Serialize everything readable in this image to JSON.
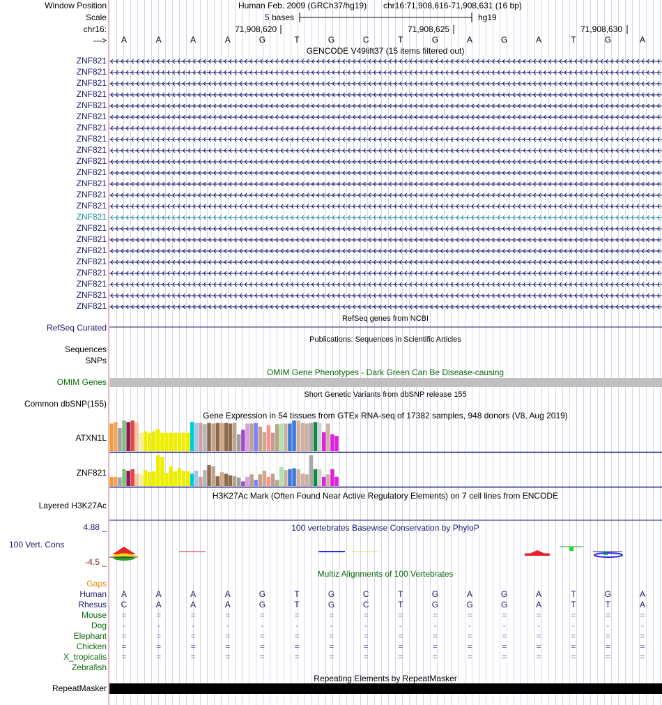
{
  "header": {
    "window_position_label": "Window Position",
    "scale_label": "Scale",
    "chrom_label": "chr16:",
    "strand_label": "--->",
    "assembly_text": "Human Feb. 2009 (GRCh37/hg19)",
    "region_text": "chr16:71,908,616-71,908,631 (16 bp)",
    "scale_text": "5 bases",
    "db_text": "hg19",
    "coords": [
      "71,908,620",
      "71,908,625",
      "71,908,630"
    ]
  },
  "sequence": [
    "A",
    "A",
    "A",
    "A",
    "G",
    "T",
    "G",
    "C",
    "T",
    "G",
    "A",
    "G",
    "A",
    "T",
    "G",
    "A"
  ],
  "gencode": {
    "title": "GENCODE V49lift37 (15 items filtered out)",
    "labels": [
      "ZNF821",
      "ZNF821",
      "ZNF821",
      "ZNF821",
      "ZNF821",
      "ZNF821",
      "ZNF821",
      "ZNF821",
      "ZNF821",
      "ZNF821",
      "ZNF821",
      "ZNF821",
      "ZNF821",
      "ZNF821",
      "ZNF821",
      "ZNF821",
      "ZNF821",
      "ZNF821",
      "ZNF821",
      "ZNF821",
      "ZNF821",
      "ZNF821",
      "ZNF821"
    ],
    "highlight_index": 14,
    "color": "#1a1a6e",
    "highlight_color": "#1e8fa6"
  },
  "refseq": {
    "label": "RefSeq Curated",
    "title": "RefSeq genes from NCBI"
  },
  "publications": {
    "title": "Publications: Sequences in Scientific Articles",
    "labels": [
      "Sequences",
      "SNPs"
    ]
  },
  "omim": {
    "title": "OMIM Gene Phenotypes - Dark Green Can Be Disease-causing",
    "label": "OMIM Genes",
    "bar_color": "#c0c0c0"
  },
  "dbsnp": {
    "title": "Short Genetic Variants from dbSNP release 155",
    "label": "Common dbSNP(155)"
  },
  "gtex": {
    "title": "Gene Expression in 54 tissues from GTEx RNA-seq of 17382 samples, 948 donors (V8, Aug 2019)",
    "genes": [
      {
        "name": "ATXN1L",
        "values": [
          0.9,
          0.95,
          0.75,
          1.0,
          0.95,
          1.0,
          0.93,
          0.6,
          0.65,
          0.6,
          0.65,
          0.73,
          0.6,
          0.6,
          0.6,
          0.6,
          0.6,
          0.6,
          0.6,
          0.95,
          0.92,
          0.92,
          0.88,
          0.92,
          0.9,
          0.92,
          0.92,
          0.92,
          0.9,
          0.92,
          0.55,
          0.7,
          0.9,
          0.9,
          0.92,
          0.8,
          0.62,
          0.85,
          0.6,
          0.88,
          0.9,
          0.9,
          0.9,
          1.0,
          1.0,
          0.92,
          0.9,
          0.92,
          0.95,
          0.92,
          0.62,
          0.9,
          0.55,
          0.5
        ]
      },
      {
        "name": "ZNF821",
        "values": [
          0.3,
          0.3,
          0.28,
          0.55,
          0.5,
          0.55,
          0.4,
          0.38,
          0.52,
          0.45,
          0.48,
          1.0,
          0.95,
          0.42,
          0.65,
          0.48,
          0.58,
          0.5,
          0.48,
          0.4,
          0.5,
          0.3,
          0.52,
          0.68,
          0.65,
          0.32,
          0.45,
          0.4,
          0.35,
          0.32,
          0.28,
          0.15,
          0.3,
          0.38,
          0.2,
          0.38,
          0.5,
          0.3,
          0.4,
          0.2,
          0.62,
          0.52,
          0.55,
          0.58,
          0.55,
          0.4,
          0.38,
          1.0,
          0.55,
          0.55,
          0.3,
          0.38,
          0.55,
          0.3
        ]
      }
    ],
    "colors": [
      "#f19a3c",
      "#f2a562",
      "#a3a3a3",
      "#7fbf7f",
      "#8b1c4f",
      "#e8463c",
      "#f7c5a5",
      "#f0f0a0",
      "#eeee00",
      "#eeee00",
      "#eeee00",
      "#eeee00",
      "#eeee00",
      "#eeee00",
      "#eeee00",
      "#eeee00",
      "#eeee00",
      "#eeee00",
      "#eeee00",
      "#00cccc",
      "#a0c8e6",
      "#cfa0a0",
      "#b5b5b5",
      "#8c6b4a",
      "#bfa28c",
      "#8c6b4a",
      "#d0a88a",
      "#8c6b4a",
      "#8c6b4a",
      "#bfa28c",
      "#a0a0a0",
      "#a74bc2",
      "#d7a0e6",
      "#bfa28c",
      "#7f7fff",
      "#bfa28c",
      "#d0a88a",
      "#ff9090",
      "#bfa28c",
      "#bfa28c",
      "#aae6aa",
      "#d0b0a0",
      "#3b7ad6",
      "#3b7ad6",
      "#d0b0a0",
      "#d0b0a0",
      "#d0b0a0",
      "#a8a8a8",
      "#118844",
      "#d0d0d0",
      "#dd22dd",
      "#d0b0a0",
      "#dd22dd",
      "#dd22dd"
    ]
  },
  "h3k27ac": {
    "title": "H3K27Ac Mark (Often Found Near Active Regulatory Elements) on 7 cell lines from ENCODE",
    "label": "Layered H3K27Ac"
  },
  "phylop": {
    "title": "100 vertebrates Basewise Conservation by PhyloP",
    "label": "100 Vert. Cons",
    "ymax": "4.88 _",
    "ymin": "-4.5 _"
  },
  "multiz": {
    "title": "Multiz Alignments of 100 Vertebrates",
    "gaps_label": "Gaps",
    "species": [
      {
        "name": "Human",
        "row": [
          "A",
          "A",
          "A",
          "A",
          "G",
          "T",
          "G",
          "C",
          "T",
          "G",
          "A",
          "G",
          "A",
          "T",
          "G",
          "A"
        ]
      },
      {
        "name": "Rhesus",
        "row": [
          "C",
          "A",
          "A",
          "A",
          "G",
          "T",
          "G",
          "C",
          "T",
          "G",
          "G",
          "G",
          "A",
          "T",
          "T",
          "A"
        ]
      },
      {
        "name": "Mouse",
        "row": [
          "=",
          "=",
          "=",
          "=",
          "=",
          "=",
          "=",
          "=",
          "=",
          "=",
          "=",
          "=",
          "=",
          "=",
          "=",
          "="
        ]
      },
      {
        "name": "Dog",
        "row": [
          "-",
          "-",
          "-",
          "-",
          "-",
          "-",
          "-",
          "-",
          "-",
          "-",
          "-",
          "-",
          "-",
          "-",
          "-",
          "-"
        ]
      },
      {
        "name": "Elephant",
        "row": [
          "=",
          "=",
          "=",
          "=",
          "=",
          "=",
          "=",
          "=",
          "=",
          "=",
          "=",
          "=",
          "=",
          "=",
          "=",
          "="
        ]
      },
      {
        "name": "Chicken",
        "row": [
          "=",
          "=",
          "=",
          "=",
          "=",
          "=",
          "=",
          "=",
          "=",
          "=",
          "=",
          "=",
          "=",
          "=",
          "=",
          "="
        ]
      },
      {
        "name": "X_tropicalis",
        "row": [
          "=",
          "=",
          "=",
          "=",
          "=",
          "=",
          "=",
          "=",
          "=",
          "=",
          "=",
          "=",
          "=",
          "=",
          "=",
          "="
        ]
      },
      {
        "name": "Zebrafish",
        "row": [
          "",
          "",
          "",
          "",
          "",
          "",
          "",
          "",
          "",
          "",
          "",
          "",
          "",
          "",
          "",
          ""
        ]
      }
    ],
    "dim_cells": [
      [
        1,
        0
      ],
      [
        1,
        10
      ],
      [
        1,
        14
      ]
    ]
  },
  "repeatmasker": {
    "title": "Repeating Elements by RepeatMasker",
    "label": "RepeatMasker"
  }
}
